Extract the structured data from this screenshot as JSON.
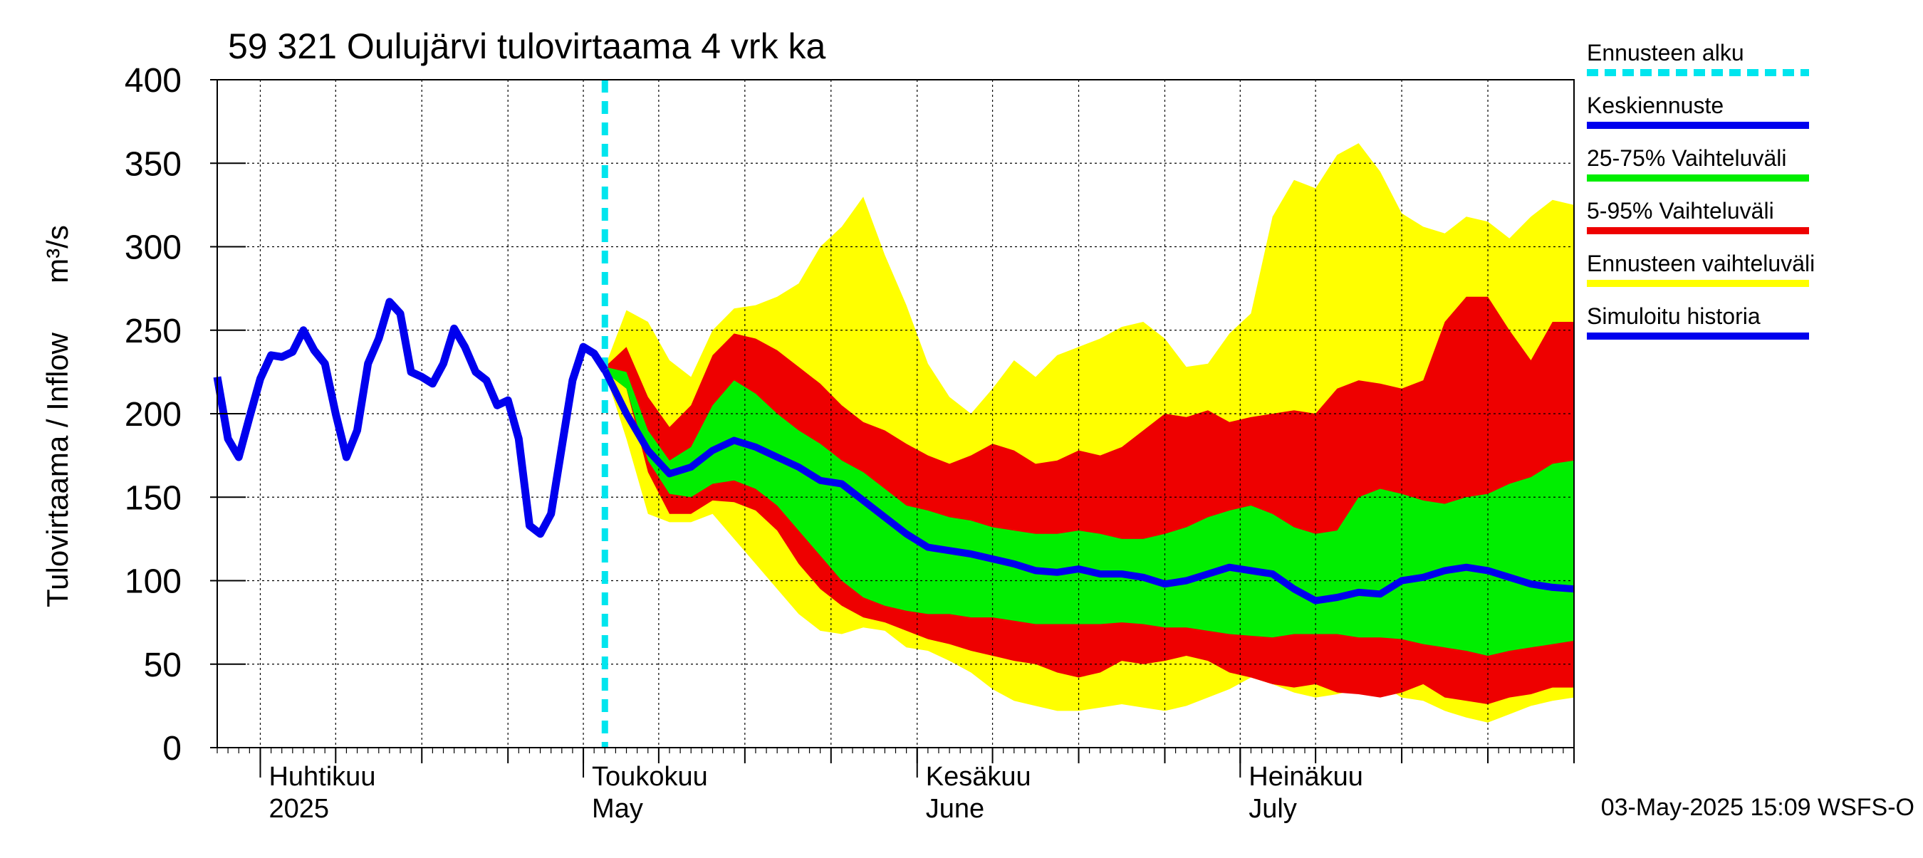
{
  "chart_data": {
    "type": "area",
    "title": "59 321 Oulujärvi tulovirtaama 4 vrk ka",
    "ylabel": "Tulovirtaama / Inflow",
    "yunit": "m³/s",
    "ylim": [
      0,
      400
    ],
    "yticks": [
      "0",
      "50",
      "100",
      "150",
      "200",
      "250",
      "300",
      "350",
      "400"
    ],
    "xlim": [
      "2025-03-28",
      "2025-08-01"
    ],
    "forecast_start": "2025-05-03",
    "grid": true,
    "legend_placement": "right",
    "month_labels": [
      {
        "fi": "Huhtikuu",
        "en": "2025",
        "date": "2025-04-01"
      },
      {
        "fi": "Toukokuu",
        "en": "May",
        "date": "2025-05-01"
      },
      {
        "fi": "Kesäkuu",
        "en": "June",
        "date": "2025-06-01"
      },
      {
        "fi": "Heinäkuu",
        "en": "July",
        "date": "2025-07-01"
      }
    ],
    "legend": [
      {
        "label": "Ennusteen alku",
        "color": "#00e5ee",
        "style": "dashed"
      },
      {
        "label": "Keskiennuste",
        "color": "#0000ee",
        "style": "solid"
      },
      {
        "label": "25-75% Vaihteluväli",
        "color": "#00ee00",
        "style": "solid"
      },
      {
        "label": "5-95% Vaihteluväli",
        "color": "#ee0000",
        "style": "solid"
      },
      {
        "label": "Ennusteen vaihteluväli",
        "color": "#ffff00",
        "style": "solid"
      },
      {
        "label": "Simuloitu historia",
        "color": "#0000ee",
        "style": "solid"
      }
    ],
    "colors": {
      "history": "#0000ee",
      "median": "#0000ee",
      "band_25_75": "#00ee00",
      "band_5_95": "#ee0000",
      "band_min_max": "#ffff00",
      "forecast_line": "#00e5ee"
    },
    "history": {
      "x": [
        "2025-03-28",
        "2025-03-29",
        "2025-03-30",
        "2025-03-31",
        "2025-04-01",
        "2025-04-02",
        "2025-04-03",
        "2025-04-04",
        "2025-04-05",
        "2025-04-06",
        "2025-04-07",
        "2025-04-08",
        "2025-04-09",
        "2025-04-10",
        "2025-04-11",
        "2025-04-12",
        "2025-04-13",
        "2025-04-14",
        "2025-04-15",
        "2025-04-16",
        "2025-04-17",
        "2025-04-18",
        "2025-04-19",
        "2025-04-20",
        "2025-04-21",
        "2025-04-22",
        "2025-04-23",
        "2025-04-24",
        "2025-04-25",
        "2025-04-26",
        "2025-04-27",
        "2025-04-28",
        "2025-04-29",
        "2025-04-30",
        "2025-05-01",
        "2025-05-02",
        "2025-05-03"
      ],
      "y": [
        222,
        185,
        174,
        198,
        221,
        235,
        234,
        237,
        250,
        238,
        230,
        200,
        174,
        190,
        230,
        245,
        267,
        260,
        225,
        222,
        218,
        230,
        251,
        240,
        225,
        220,
        205,
        208,
        185,
        133,
        128,
        140,
        180,
        220,
        240,
        236,
        226
      ]
    },
    "median": {
      "x": [
        "2025-05-03",
        "2025-05-05",
        "2025-05-07",
        "2025-05-09",
        "2025-05-11",
        "2025-05-13",
        "2025-05-15",
        "2025-05-17",
        "2025-05-19",
        "2025-05-21",
        "2025-05-23",
        "2025-05-25",
        "2025-05-27",
        "2025-05-29",
        "2025-05-31",
        "2025-06-02",
        "2025-06-04",
        "2025-06-06",
        "2025-06-08",
        "2025-06-10",
        "2025-06-12",
        "2025-06-14",
        "2025-06-16",
        "2025-06-18",
        "2025-06-20",
        "2025-06-22",
        "2025-06-24",
        "2025-06-26",
        "2025-06-28",
        "2025-06-30",
        "2025-07-02",
        "2025-07-04",
        "2025-07-06",
        "2025-07-08",
        "2025-07-10",
        "2025-07-12",
        "2025-07-14",
        "2025-07-16",
        "2025-07-18",
        "2025-07-20",
        "2025-07-22",
        "2025-07-24",
        "2025-07-26",
        "2025-07-28",
        "2025-07-30",
        "2025-08-01"
      ],
      "y": [
        226,
        200,
        178,
        164,
        168,
        178,
        184,
        180,
        174,
        168,
        160,
        158,
        148,
        138,
        128,
        120,
        118,
        116,
        113,
        110,
        106,
        105,
        107,
        104,
        104,
        102,
        98,
        100,
        104,
        108,
        106,
        104,
        95,
        88,
        90,
        93,
        92,
        100,
        102,
        106,
        108,
        106,
        102,
        98,
        96,
        95
      ]
    },
    "band_min_max": {
      "x": [
        "2025-05-03",
        "2025-05-05",
        "2025-05-07",
        "2025-05-09",
        "2025-05-11",
        "2025-05-13",
        "2025-05-15",
        "2025-05-17",
        "2025-05-19",
        "2025-05-21",
        "2025-05-23",
        "2025-05-25",
        "2025-05-27",
        "2025-05-29",
        "2025-05-31",
        "2025-06-02",
        "2025-06-04",
        "2025-06-06",
        "2025-06-08",
        "2025-06-10",
        "2025-06-12",
        "2025-06-14",
        "2025-06-16",
        "2025-06-18",
        "2025-06-20",
        "2025-06-22",
        "2025-06-24",
        "2025-06-26",
        "2025-06-28",
        "2025-06-30",
        "2025-07-02",
        "2025-07-04",
        "2025-07-06",
        "2025-07-08",
        "2025-07-10",
        "2025-07-12",
        "2025-07-14",
        "2025-07-16",
        "2025-07-18",
        "2025-07-20",
        "2025-07-22",
        "2025-07-24",
        "2025-07-26",
        "2025-07-28",
        "2025-07-30",
        "2025-08-01"
      ],
      "high": [
        228,
        262,
        255,
        232,
        222,
        250,
        263,
        265,
        270,
        278,
        300,
        312,
        330,
        295,
        265,
        230,
        210,
        200,
        215,
        232,
        222,
        235,
        240,
        245,
        252,
        255,
        245,
        228,
        230,
        248,
        260,
        318,
        340,
        335,
        355,
        362,
        345,
        320,
        312,
        308,
        318,
        315,
        305,
        318,
        328,
        325
      ],
      "low": [
        225,
        185,
        140,
        135,
        135,
        140,
        125,
        110,
        95,
        80,
        70,
        68,
        72,
        70,
        60,
        58,
        52,
        45,
        35,
        28,
        25,
        22,
        22,
        24,
        26,
        24,
        22,
        25,
        30,
        35,
        42,
        38,
        33,
        30,
        32,
        35,
        38,
        30,
        28,
        22,
        18,
        15,
        20,
        25,
        28,
        30
      ]
    },
    "band_5_95": {
      "x": [
        "2025-05-03",
        "2025-05-05",
        "2025-05-07",
        "2025-05-09",
        "2025-05-11",
        "2025-05-13",
        "2025-05-15",
        "2025-05-17",
        "2025-05-19",
        "2025-05-21",
        "2025-05-23",
        "2025-05-25",
        "2025-05-27",
        "2025-05-29",
        "2025-05-31",
        "2025-06-02",
        "2025-06-04",
        "2025-06-06",
        "2025-06-08",
        "2025-06-10",
        "2025-06-12",
        "2025-06-14",
        "2025-06-16",
        "2025-06-18",
        "2025-06-20",
        "2025-06-22",
        "2025-06-24",
        "2025-06-26",
        "2025-06-28",
        "2025-06-30",
        "2025-07-02",
        "2025-07-04",
        "2025-07-06",
        "2025-07-08",
        "2025-07-10",
        "2025-07-12",
        "2025-07-14",
        "2025-07-16",
        "2025-07-18",
        "2025-07-20",
        "2025-07-22",
        "2025-07-24",
        "2025-07-26",
        "2025-07-28",
        "2025-07-30",
        "2025-08-01"
      ],
      "high": [
        228,
        240,
        210,
        192,
        205,
        235,
        248,
        245,
        238,
        228,
        218,
        205,
        195,
        190,
        182,
        175,
        170,
        175,
        182,
        178,
        170,
        172,
        178,
        175,
        180,
        190,
        200,
        198,
        202,
        195,
        198,
        200,
        202,
        200,
        215,
        220,
        218,
        215,
        220,
        255,
        270,
        270,
        250,
        232,
        255,
        255
      ],
      "low": [
        225,
        215,
        165,
        140,
        140,
        148,
        147,
        142,
        130,
        110,
        95,
        85,
        78,
        75,
        70,
        65,
        62,
        58,
        55,
        52,
        50,
        45,
        42,
        45,
        52,
        50,
        52,
        55,
        52,
        45,
        42,
        38,
        36,
        38,
        33,
        32,
        30,
        33,
        38,
        30,
        28,
        26,
        30,
        32,
        36,
        36
      ]
    },
    "band_25_75": {
      "x": [
        "2025-05-03",
        "2025-05-05",
        "2025-05-07",
        "2025-05-09",
        "2025-05-11",
        "2025-05-13",
        "2025-05-15",
        "2025-05-17",
        "2025-05-19",
        "2025-05-21",
        "2025-05-23",
        "2025-05-25",
        "2025-05-27",
        "2025-05-29",
        "2025-05-31",
        "2025-06-02",
        "2025-06-04",
        "2025-06-06",
        "2025-06-08",
        "2025-06-10",
        "2025-06-12",
        "2025-06-14",
        "2025-06-16",
        "2025-06-18",
        "2025-06-20",
        "2025-06-22",
        "2025-06-24",
        "2025-06-26",
        "2025-06-28",
        "2025-06-30",
        "2025-07-02",
        "2025-07-04",
        "2025-07-06",
        "2025-07-08",
        "2025-07-10",
        "2025-07-12",
        "2025-07-14",
        "2025-07-16",
        "2025-07-18",
        "2025-07-20",
        "2025-07-22",
        "2025-07-24",
        "2025-07-26",
        "2025-07-28",
        "2025-07-30",
        "2025-08-01"
      ],
      "high": [
        228,
        225,
        190,
        172,
        180,
        205,
        220,
        212,
        200,
        190,
        182,
        172,
        165,
        155,
        145,
        142,
        138,
        136,
        132,
        130,
        128,
        128,
        130,
        128,
        125,
        125,
        128,
        132,
        138,
        142,
        145,
        140,
        132,
        128,
        130,
        150,
        155,
        152,
        148,
        146,
        150,
        152,
        158,
        162,
        170,
        172
      ],
      "low": [
        225,
        215,
        172,
        152,
        150,
        158,
        160,
        155,
        145,
        130,
        115,
        100,
        90,
        85,
        82,
        80,
        80,
        78,
        78,
        76,
        74,
        74,
        74,
        74,
        75,
        74,
        72,
        72,
        70,
        68,
        67,
        66,
        68,
        68,
        68,
        66,
        66,
        65,
        62,
        60,
        58,
        55,
        58,
        60,
        62,
        64
      ]
    },
    "footer": "03-May-2025 15:09 WSFS-O"
  }
}
